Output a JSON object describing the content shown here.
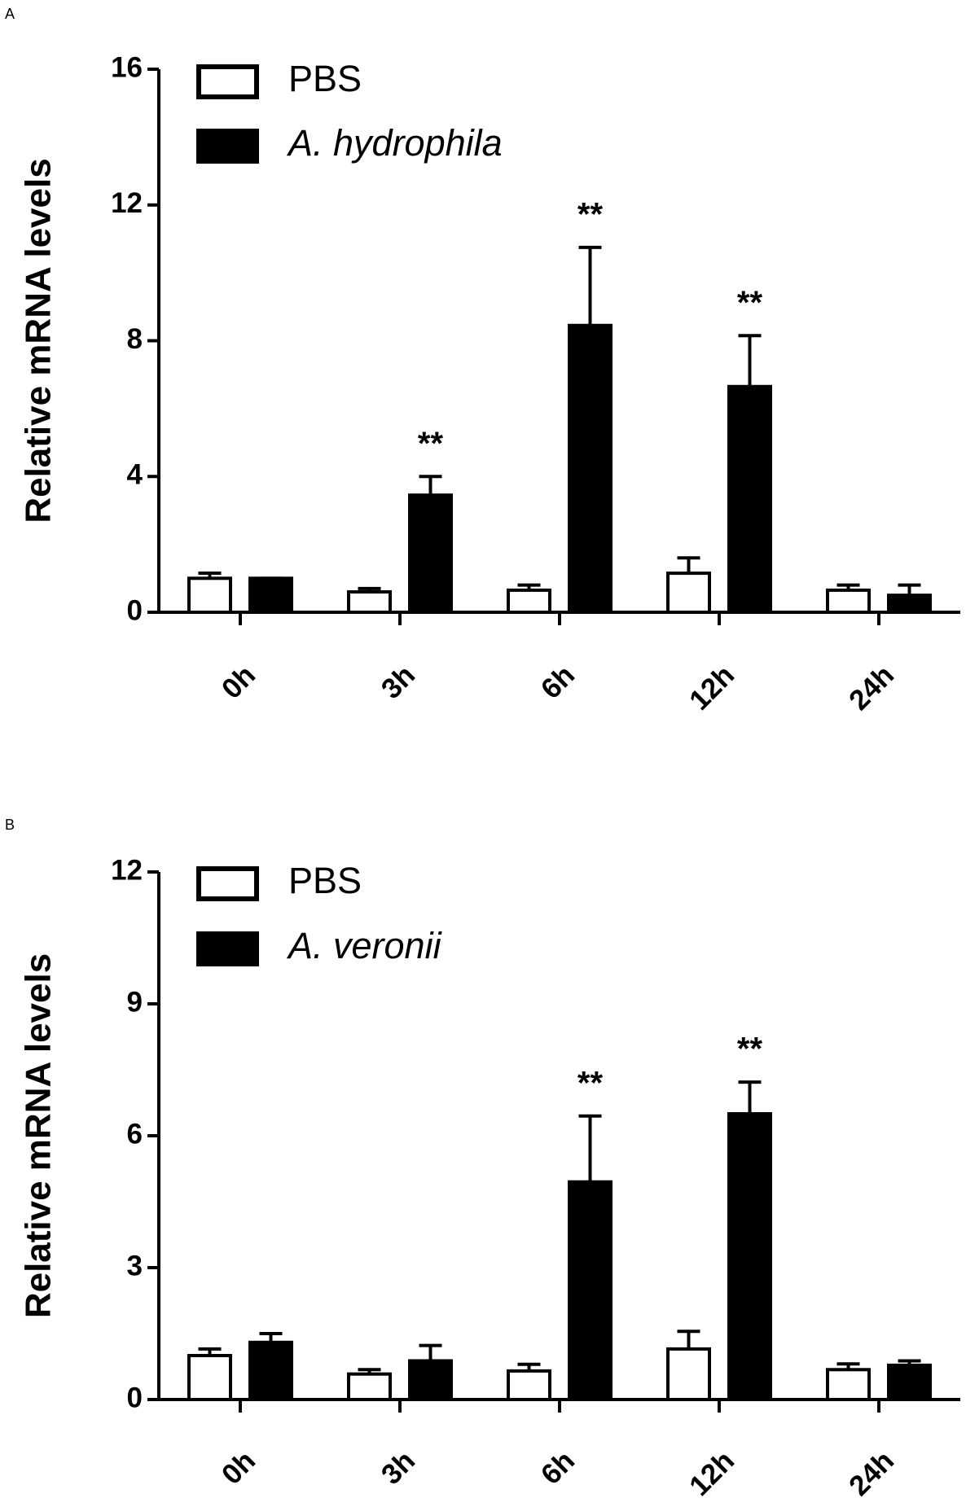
{
  "chart_data": [
    {
      "type": "bar",
      "panel_label": "A",
      "y_label": "Relative mRNA levels",
      "categories": [
        "0h",
        "3h",
        "6h",
        "12h",
        "24h"
      ],
      "series": [
        {
          "name": "PBS",
          "color": "#ffffff",
          "italic": false,
          "values": [
            1.0,
            0.6,
            0.65,
            1.15,
            0.65
          ],
          "errors": [
            0.15,
            0.1,
            0.15,
            0.45,
            0.15
          ]
        },
        {
          "name": "A. hydrophila",
          "color": "#000000",
          "italic": true,
          "values": [
            1.0,
            3.45,
            8.45,
            6.65,
            0.5
          ],
          "errors": [
            0,
            0.55,
            2.3,
            1.5,
            0.3
          ]
        }
      ],
      "significance": [
        null,
        "**",
        "**",
        "**",
        null
      ],
      "ylim": [
        0,
        16
      ],
      "yticks": [
        0,
        4,
        8,
        12,
        16
      ]
    },
    {
      "type": "bar",
      "panel_label": "B",
      "y_label": "Relative mRNA levels",
      "categories": [
        "0h",
        "3h",
        "6h",
        "12h",
        "24h"
      ],
      "series": [
        {
          "name": "PBS",
          "color": "#ffffff",
          "italic": false,
          "values": [
            1.0,
            0.58,
            0.65,
            1.15,
            0.68
          ],
          "errors": [
            0.15,
            0.1,
            0.15,
            0.4,
            0.13
          ]
        },
        {
          "name": "A. veronii",
          "color": "#000000",
          "italic": true,
          "values": [
            1.3,
            0.88,
            4.95,
            6.5,
            0.78
          ],
          "errors": [
            0.2,
            0.35,
            1.5,
            0.72,
            0.1
          ]
        }
      ],
      "significance": [
        null,
        null,
        "**",
        "**",
        null
      ],
      "ylim": [
        0,
        12
      ],
      "yticks": [
        0,
        3,
        6,
        9,
        12
      ]
    }
  ]
}
